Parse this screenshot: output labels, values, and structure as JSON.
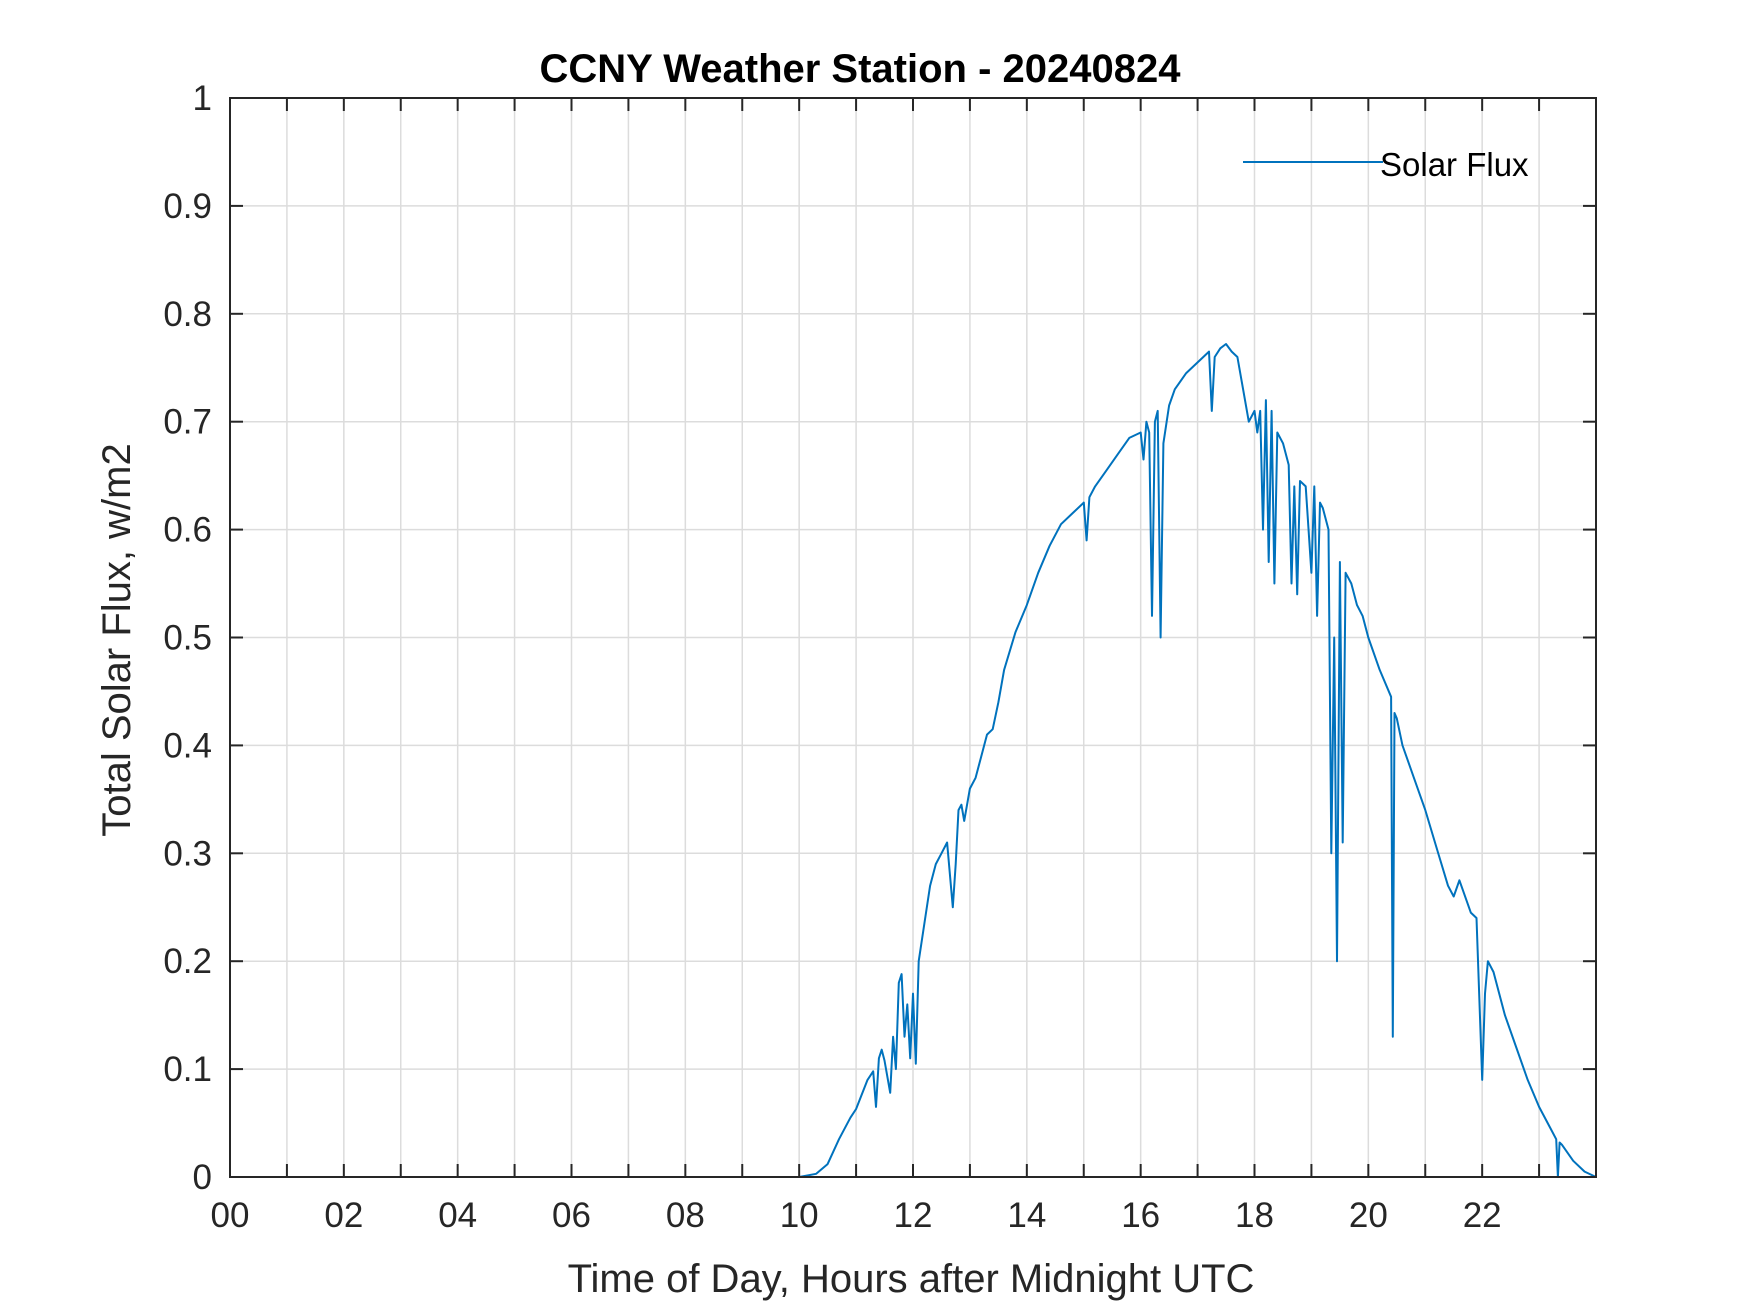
{
  "chart_data": {
    "type": "line",
    "title": "CCNY Weather Station - 20240824",
    "xlabel": "Time of Day, Hours after Midnight UTC",
    "ylabel": "Total Solar Flux, w/m2",
    "xlim": [
      0,
      24
    ],
    "ylim": [
      0,
      1
    ],
    "xticks": [
      {
        "value": 0,
        "label": "00"
      },
      {
        "value": 2,
        "label": "02"
      },
      {
        "value": 4,
        "label": "04"
      },
      {
        "value": 6,
        "label": "06"
      },
      {
        "value": 8,
        "label": "08"
      },
      {
        "value": 10,
        "label": "10"
      },
      {
        "value": 12,
        "label": "12"
      },
      {
        "value": 14,
        "label": "14"
      },
      {
        "value": 16,
        "label": "16"
      },
      {
        "value": 18,
        "label": "18"
      },
      {
        "value": 20,
        "label": "20"
      },
      {
        "value": 22,
        "label": "22"
      }
    ],
    "xminor": [
      1,
      3,
      5,
      7,
      9,
      11,
      13,
      15,
      17,
      19,
      21,
      23
    ],
    "yticks": [
      {
        "value": 0,
        "label": "0"
      },
      {
        "value": 0.1,
        "label": "0.1"
      },
      {
        "value": 0.2,
        "label": "0.2"
      },
      {
        "value": 0.3,
        "label": "0.3"
      },
      {
        "value": 0.4,
        "label": "0.4"
      },
      {
        "value": 0.5,
        "label": "0.5"
      },
      {
        "value": 0.6,
        "label": "0.6"
      },
      {
        "value": 0.7,
        "label": "0.7"
      },
      {
        "value": 0.8,
        "label": "0.8"
      },
      {
        "value": 0.9,
        "label": "0.9"
      },
      {
        "value": 1,
        "label": "1"
      }
    ],
    "grid": true,
    "legend": {
      "position": "top-right",
      "entries": [
        "Solar Flux"
      ]
    },
    "series": [
      {
        "name": "Solar Flux",
        "color": "#0072BD",
        "x": [
          0,
          10.0,
          10.3,
          10.5,
          10.7,
          10.9,
          11.0,
          11.2,
          11.3,
          11.35,
          11.4,
          11.45,
          11.5,
          11.6,
          11.65,
          11.7,
          11.75,
          11.8,
          11.85,
          11.9,
          11.95,
          12.0,
          12.05,
          12.1,
          12.2,
          12.3,
          12.4,
          12.5,
          12.6,
          12.7,
          12.75,
          12.8,
          12.85,
          12.9,
          13.0,
          13.1,
          13.2,
          13.3,
          13.4,
          13.5,
          13.6,
          13.8,
          14.0,
          14.2,
          14.4,
          14.6,
          14.8,
          15.0,
          15.05,
          15.1,
          15.2,
          15.4,
          15.6,
          15.8,
          16.0,
          16.05,
          16.1,
          16.15,
          16.2,
          16.25,
          16.3,
          16.35,
          16.4,
          16.5,
          16.6,
          16.8,
          17.0,
          17.2,
          17.25,
          17.3,
          17.4,
          17.5,
          17.6,
          17.7,
          17.8,
          17.9,
          18.0,
          18.05,
          18.1,
          18.15,
          18.2,
          18.25,
          18.3,
          18.35,
          18.4,
          18.5,
          18.6,
          18.65,
          18.7,
          18.75,
          18.8,
          18.9,
          19.0,
          19.05,
          19.1,
          19.15,
          19.2,
          19.3,
          19.35,
          19.4,
          19.45,
          19.5,
          19.55,
          19.6,
          19.7,
          19.8,
          19.9,
          20.0,
          20.2,
          20.4,
          20.43,
          20.46,
          20.5,
          20.6,
          20.8,
          21.0,
          21.2,
          21.4,
          21.5,
          21.6,
          21.8,
          21.9,
          22.0,
          22.05,
          22.1,
          22.2,
          22.4,
          22.6,
          22.8,
          23.0,
          23.2,
          23.3,
          23.33,
          23.36,
          23.4,
          23.6,
          23.8,
          24.0
        ],
        "y": [
          0,
          0,
          0.003,
          0.012,
          0.035,
          0.055,
          0.063,
          0.09,
          0.098,
          0.065,
          0.11,
          0.118,
          0.108,
          0.078,
          0.13,
          0.1,
          0.18,
          0.188,
          0.13,
          0.16,
          0.11,
          0.17,
          0.105,
          0.2,
          0.235,
          0.27,
          0.29,
          0.3,
          0.31,
          0.25,
          0.29,
          0.34,
          0.345,
          0.33,
          0.36,
          0.37,
          0.39,
          0.41,
          0.415,
          0.44,
          0.47,
          0.505,
          0.53,
          0.56,
          0.585,
          0.605,
          0.615,
          0.625,
          0.59,
          0.63,
          0.64,
          0.655,
          0.67,
          0.685,
          0.69,
          0.665,
          0.7,
          0.69,
          0.52,
          0.7,
          0.71,
          0.5,
          0.68,
          0.715,
          0.73,
          0.745,
          0.755,
          0.765,
          0.71,
          0.76,
          0.768,
          0.772,
          0.765,
          0.76,
          0.73,
          0.7,
          0.71,
          0.69,
          0.71,
          0.6,
          0.72,
          0.57,
          0.71,
          0.55,
          0.69,
          0.68,
          0.66,
          0.55,
          0.64,
          0.54,
          0.645,
          0.64,
          0.56,
          0.64,
          0.52,
          0.625,
          0.62,
          0.6,
          0.3,
          0.5,
          0.2,
          0.57,
          0.31,
          0.56,
          0.55,
          0.53,
          0.52,
          0.5,
          0.47,
          0.445,
          0.13,
          0.43,
          0.425,
          0.4,
          0.37,
          0.34,
          0.305,
          0.27,
          0.26,
          0.275,
          0.245,
          0.24,
          0.09,
          0.17,
          0.2,
          0.19,
          0.15,
          0.12,
          0.09,
          0.065,
          0.045,
          0.035,
          0.0,
          0.032,
          0.03,
          0.015,
          0.005,
          0.0
        ]
      }
    ]
  }
}
